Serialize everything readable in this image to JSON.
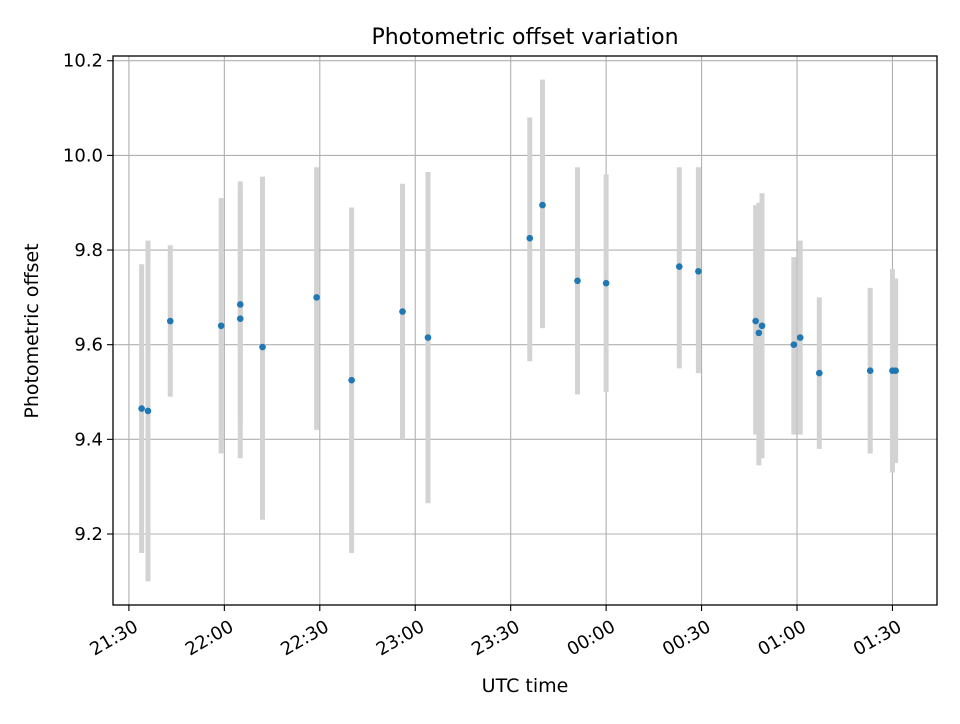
{
  "colors": {
    "point": "#1f77b4",
    "errorbar": "#d3d3d3",
    "grid": "#b0b0b0",
    "axis": "#000000"
  },
  "chart_data": {
    "type": "scatter",
    "title": "Photometric offset variation",
    "xlabel": "UTC time",
    "ylabel": "Photometric offset",
    "grid": true,
    "x_is_time": true,
    "xlim": [
      "21:25",
      "01:44"
    ],
    "ylim": [
      9.05,
      10.21
    ],
    "xticks": [
      "21:30",
      "22:00",
      "22:30",
      "23:00",
      "23:30",
      "00:00",
      "00:30",
      "01:00",
      "01:30"
    ],
    "yticks": [
      9.2,
      9.4,
      9.6,
      9.8,
      10.0,
      10.2
    ],
    "ytick_labels": [
      "9.2",
      "9.4",
      "9.6",
      "9.8",
      "10.0",
      "10.2"
    ],
    "points": [
      {
        "x": "21:34",
        "y": 9.465,
        "lo": 9.16,
        "hi": 9.77
      },
      {
        "x": "21:36",
        "y": 9.46,
        "lo": 9.1,
        "hi": 9.82
      },
      {
        "x": "21:43",
        "y": 9.65,
        "lo": 9.49,
        "hi": 9.81
      },
      {
        "x": "21:59",
        "y": 9.64,
        "lo": 9.37,
        "hi": 9.91
      },
      {
        "x": "22:05",
        "y": 9.685,
        "lo": 9.44,
        "hi": 9.93
      },
      {
        "x": "22:05",
        "y": 9.655,
        "lo": 9.36,
        "hi": 9.945
      },
      {
        "x": "22:12",
        "y": 9.595,
        "lo": 9.23,
        "hi": 9.955
      },
      {
        "x": "22:29",
        "y": 9.7,
        "lo": 9.42,
        "hi": 9.975
      },
      {
        "x": "22:40",
        "y": 9.525,
        "lo": 9.16,
        "hi": 9.89
      },
      {
        "x": "22:56",
        "y": 9.67,
        "lo": 9.4,
        "hi": 9.94
      },
      {
        "x": "23:04",
        "y": 9.615,
        "lo": 9.265,
        "hi": 9.965
      },
      {
        "x": "23:36",
        "y": 9.825,
        "lo": 9.565,
        "hi": 10.08
      },
      {
        "x": "23:40",
        "y": 9.895,
        "lo": 9.635,
        "hi": 10.16
      },
      {
        "x": "23:51",
        "y": 9.735,
        "lo": 9.495,
        "hi": 9.975
      },
      {
        "x": "00:00",
        "y": 9.73,
        "lo": 9.5,
        "hi": 9.96
      },
      {
        "x": "00:23",
        "y": 9.765,
        "lo": 9.55,
        "hi": 9.975
      },
      {
        "x": "00:29",
        "y": 9.755,
        "lo": 9.54,
        "hi": 9.975
      },
      {
        "x": "00:47",
        "y": 9.65,
        "lo": 9.41,
        "hi": 9.895
      },
      {
        "x": "00:48",
        "y": 9.625,
        "lo": 9.345,
        "hi": 9.9
      },
      {
        "x": "00:49",
        "y": 9.64,
        "lo": 9.36,
        "hi": 9.92
      },
      {
        "x": "00:59",
        "y": 9.6,
        "lo": 9.41,
        "hi": 9.785
      },
      {
        "x": "01:01",
        "y": 9.615,
        "lo": 9.41,
        "hi": 9.82
      },
      {
        "x": "01:07",
        "y": 9.54,
        "lo": 9.38,
        "hi": 9.7
      },
      {
        "x": "01:23",
        "y": 9.545,
        "lo": 9.37,
        "hi": 9.72
      },
      {
        "x": "01:30",
        "y": 9.545,
        "lo": 9.33,
        "hi": 9.76
      },
      {
        "x": "01:31",
        "y": 9.545,
        "lo": 9.35,
        "hi": 9.74
      }
    ]
  }
}
